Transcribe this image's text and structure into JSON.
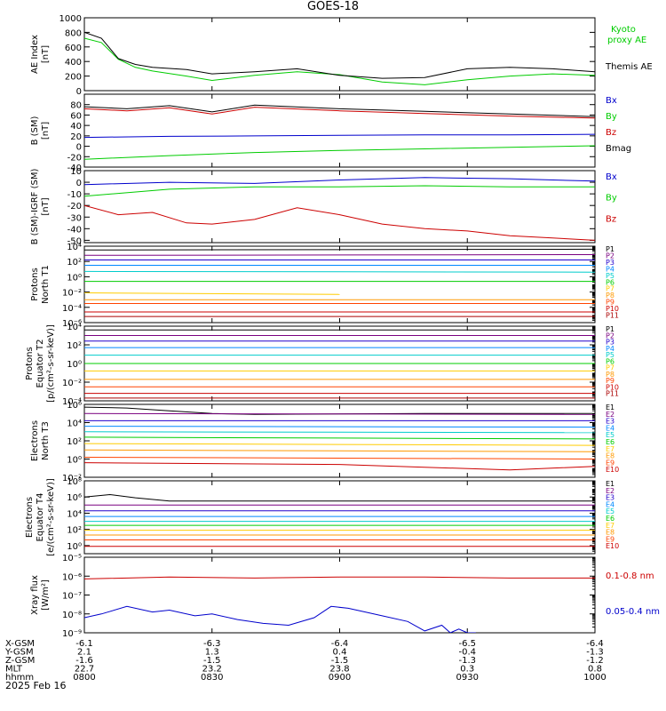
{
  "title": "GOES-18",
  "date_label": "2025 Feb 16",
  "chart_data": [
    {
      "type": "line",
      "id": "ae",
      "ylabel": [
        "AE Index",
        "[nT]"
      ],
      "ylim": [
        0,
        1000
      ],
      "ylog": false,
      "ticks": [
        0,
        200,
        400,
        600,
        800,
        1000
      ],
      "tick_labels": [
        "0",
        "200",
        "400",
        "600",
        "800",
        "1000"
      ],
      "series": [
        {
          "name": "Kyoto proxy AE",
          "label_lines": [
            "Kyoto",
            "proxy AE"
          ],
          "color": "#00cc00",
          "x": [
            0,
            4,
            8,
            12,
            16,
            24,
            30,
            40,
            50,
            60,
            70,
            80,
            90,
            100,
            110,
            120
          ],
          "y": [
            720,
            660,
            430,
            320,
            270,
            200,
            140,
            210,
            260,
            220,
            120,
            80,
            150,
            200,
            230,
            210
          ]
        },
        {
          "name": "Themis AE",
          "label_lines": [
            "Themis AE"
          ],
          "color": "#000000",
          "x": [
            0,
            4,
            8,
            12,
            16,
            24,
            30,
            40,
            50,
            60,
            70,
            80,
            90,
            100,
            110,
            120
          ],
          "y": [
            800,
            720,
            440,
            360,
            320,
            290,
            230,
            260,
            300,
            210,
            170,
            180,
            300,
            320,
            300,
            260
          ]
        }
      ]
    },
    {
      "type": "line",
      "id": "bsm",
      "ylabel": [
        "B (SM)",
        "[nT]"
      ],
      "ylim": [
        -40,
        100
      ],
      "ylog": false,
      "ticks": [
        -40,
        -20,
        0,
        20,
        40,
        60,
        80
      ],
      "tick_labels": [
        "-40",
        "-20",
        "0",
        "20",
        "40",
        "60",
        "80"
      ],
      "series": [
        {
          "name": "Bx",
          "color": "#0000cc",
          "x": [
            0,
            20,
            40,
            60,
            80,
            100,
            120
          ],
          "y": [
            17,
            19,
            20,
            21,
            22,
            22,
            23
          ]
        },
        {
          "name": "By",
          "color": "#00cc00",
          "x": [
            0,
            20,
            40,
            60,
            80,
            100,
            120
          ],
          "y": [
            -25,
            -18,
            -12,
            -8,
            -5,
            -2,
            1
          ]
        },
        {
          "name": "Bz",
          "color": "#cc0000",
          "x": [
            0,
            10,
            20,
            30,
            40,
            60,
            80,
            100,
            120
          ],
          "y": [
            72,
            68,
            74,
            62,
            75,
            68,
            63,
            58,
            54
          ]
        },
        {
          "name": "Bmag",
          "color": "#000000",
          "x": [
            0,
            10,
            20,
            30,
            40,
            60,
            80,
            100,
            120
          ],
          "y": [
            76,
            72,
            78,
            66,
            79,
            72,
            67,
            62,
            57
          ]
        }
      ]
    },
    {
      "type": "line",
      "id": "bigrf",
      "ylabel": [
        "B (SM)-IGRF (SM)",
        "[nT]"
      ],
      "ylim": [
        -52,
        10
      ],
      "ylog": false,
      "ticks": [
        -50,
        -40,
        -30,
        -20,
        -10,
        0,
        10
      ],
      "tick_labels": [
        "-50",
        "-40",
        "-30",
        "-20",
        "-10",
        "0",
        "10"
      ],
      "series": [
        {
          "name": "Bx",
          "color": "#0000cc",
          "x": [
            0,
            20,
            40,
            60,
            80,
            100,
            120
          ],
          "y": [
            -2,
            0,
            -1,
            2,
            4,
            3,
            1
          ]
        },
        {
          "name": "By",
          "color": "#00cc00",
          "x": [
            0,
            20,
            40,
            60,
            80,
            100,
            120
          ],
          "y": [
            -12,
            -6,
            -4,
            -4,
            -3,
            -4,
            -4
          ]
        },
        {
          "name": "Bz",
          "color": "#cc0000",
          "x": [
            0,
            8,
            16,
            24,
            30,
            40,
            50,
            60,
            70,
            80,
            90,
            100,
            110,
            120
          ],
          "y": [
            -20,
            -28,
            -26,
            -35,
            -36,
            -32,
            -22,
            -28,
            -36,
            -40,
            -42,
            -46,
            -48,
            -50
          ]
        }
      ]
    },
    {
      "type": "line",
      "id": "p_north",
      "ylabel": [
        "Protons",
        "North T1"
      ],
      "ylim": [
        -6,
        4
      ],
      "ylog": true,
      "ticks": [
        4,
        2,
        0,
        -2,
        -4,
        -6
      ],
      "tick_labels": [
        "10⁴",
        "10²",
        "10⁰",
        "10⁻²",
        "10⁻⁴",
        "10⁻⁶"
      ],
      "series": [
        {
          "name": "P1",
          "color": "#000000",
          "x": [
            0,
            120
          ],
          "y": [
            3.5,
            3.6
          ]
        },
        {
          "name": "P2",
          "color": "#7a0080",
          "x": [
            0,
            120
          ],
          "y": [
            2.8,
            2.9
          ]
        },
        {
          "name": "P3",
          "color": "#2200cc",
          "x": [
            0,
            120
          ],
          "y": [
            2.2,
            2.2
          ]
        },
        {
          "name": "P4",
          "color": "#0088ff",
          "x": [
            0,
            120
          ],
          "y": [
            1.5,
            1.5
          ]
        },
        {
          "name": "P5",
          "color": "#00cccc",
          "x": [
            0,
            120
          ],
          "y": [
            0.7,
            0.6
          ]
        },
        {
          "name": "P6",
          "color": "#00cc00",
          "x": [
            0,
            120
          ],
          "y": [
            -0.6,
            -0.6
          ]
        },
        {
          "name": "P7",
          "color": "#ffcc00",
          "x": [
            0,
            60
          ],
          "y": [
            -2.1,
            -2.3
          ]
        },
        {
          "name": "P8",
          "color": "#ff9900",
          "x": [
            0,
            120
          ],
          "y": [
            -3.0,
            -3.0
          ]
        },
        {
          "name": "P9",
          "color": "#ff4400",
          "x": [
            0,
            120
          ],
          "y": [
            -3.5,
            -3.5
          ]
        },
        {
          "name": "P10",
          "color": "#cc0000",
          "x": [
            0,
            120
          ],
          "y": [
            -4.6,
            -4.6
          ]
        },
        {
          "name": "P11",
          "color": "#aa0000",
          "x": [
            0,
            120
          ],
          "y": [
            -5.2,
            -5.2
          ]
        }
      ]
    },
    {
      "type": "line",
      "id": "p_equator",
      "ylabel": [
        "Protons",
        "Equator T2",
        "[p/(cm²-s-sr-keV)]"
      ],
      "ylim": [
        -4,
        4
      ],
      "ylog": true,
      "ticks": [
        4,
        2,
        0,
        -2,
        -4
      ],
      "tick_labels": [
        "10⁴",
        "10²",
        "10⁰",
        "10⁻²",
        "10⁻⁴"
      ],
      "series": [
        {
          "name": "P1",
          "color": "#000000",
          "x": [
            0,
            120
          ],
          "y": [
            3.6,
            3.6
          ]
        },
        {
          "name": "P2",
          "color": "#7a0080",
          "x": [
            0,
            120
          ],
          "y": [
            3.0,
            3.0
          ]
        },
        {
          "name": "P3",
          "color": "#2200cc",
          "x": [
            0,
            120
          ],
          "y": [
            2.4,
            2.4
          ]
        },
        {
          "name": "P4",
          "color": "#0088ff",
          "x": [
            0,
            120
          ],
          "y": [
            1.7,
            1.7
          ]
        },
        {
          "name": "P5",
          "color": "#00cccc",
          "x": [
            0,
            120
          ],
          "y": [
            0.9,
            0.9
          ]
        },
        {
          "name": "P6",
          "color": "#00cc00",
          "x": [
            0,
            120
          ],
          "y": [
            0.0,
            0.0
          ]
        },
        {
          "name": "P7",
          "color": "#ffcc00",
          "x": [
            0,
            120
          ],
          "y": [
            -0.8,
            -0.8
          ]
        },
        {
          "name": "P8",
          "color": "#ff9900",
          "x": [
            0,
            120
          ],
          "y": [
            -1.7,
            -1.7
          ]
        },
        {
          "name": "P9",
          "color": "#ff4400",
          "x": [
            0,
            120
          ],
          "y": [
            -2.5,
            -2.5
          ]
        },
        {
          "name": "P10",
          "color": "#cc0000",
          "x": [
            0,
            120
          ],
          "y": [
            -3.2,
            -3.2
          ]
        },
        {
          "name": "P11",
          "color": "#aa0000",
          "x": [
            0,
            120
          ],
          "y": [
            -3.7,
            -3.7
          ]
        }
      ]
    },
    {
      "type": "line",
      "id": "e_north",
      "ylabel": [
        "Electrons",
        "North T3"
      ],
      "ylim": [
        -2,
        6
      ],
      "ylog": true,
      "ticks": [
        6,
        4,
        2,
        0,
        -2
      ],
      "tick_labels": [
        "10⁶",
        "10⁴",
        "10²",
        "10⁰",
        "10⁻²"
      ],
      "series": [
        {
          "name": "E1",
          "color": "#000000",
          "x": [
            0,
            10,
            20,
            30,
            40,
            80,
            120
          ],
          "y": [
            5.7,
            5.6,
            5.3,
            5.0,
            4.9,
            5.0,
            5.0
          ]
        },
        {
          "name": "E2",
          "color": "#7a0080",
          "x": [
            0,
            120
          ],
          "y": [
            5.0,
            4.9
          ]
        },
        {
          "name": "E3",
          "color": "#2200cc",
          "x": [
            0,
            120
          ],
          "y": [
            4.2,
            4.2
          ]
        },
        {
          "name": "E4",
          "color": "#0088ff",
          "x": [
            0,
            120
          ],
          "y": [
            3.6,
            3.5
          ]
        },
        {
          "name": "E5",
          "color": "#00cccc",
          "x": [
            0,
            120
          ],
          "y": [
            3.0,
            2.9
          ]
        },
        {
          "name": "E6",
          "color": "#00cc00",
          "x": [
            0,
            120
          ],
          "y": [
            2.4,
            2.2
          ]
        },
        {
          "name": "E7",
          "color": "#ffcc00",
          "x": [
            0,
            120
          ],
          "y": [
            1.7,
            1.5
          ]
        },
        {
          "name": "E8",
          "color": "#ff9900",
          "x": [
            0,
            120
          ],
          "y": [
            1.0,
            0.8
          ]
        },
        {
          "name": "E9",
          "color": "#ff4400",
          "x": [
            0,
            120
          ],
          "y": [
            0.2,
            0.0
          ]
        },
        {
          "name": "E10",
          "color": "#cc0000",
          "x": [
            0,
            60,
            100,
            120
          ],
          "y": [
            -0.4,
            -0.6,
            -1.2,
            -0.8
          ]
        }
      ]
    },
    {
      "type": "line",
      "id": "e_equator",
      "ylabel": [
        "Electrons",
        "Equator T4",
        "[e/(cm²-s-sr-keV)]"
      ],
      "ylim": [
        -1,
        8
      ],
      "ylog": true,
      "ticks": [
        8,
        6,
        4,
        2,
        0
      ],
      "tick_labels": [
        "10⁸",
        "10⁶",
        "10⁴",
        "10²",
        "10⁰"
      ],
      "series": [
        {
          "name": "E1",
          "color": "#000000",
          "x": [
            0,
            6,
            12,
            20,
            120
          ],
          "y": [
            6.0,
            6.3,
            5.9,
            5.5,
            5.5
          ]
        },
        {
          "name": "E2",
          "color": "#7a0080",
          "x": [
            0,
            120
          ],
          "y": [
            5.0,
            5.0
          ]
        },
        {
          "name": "E3",
          "color": "#2200cc",
          "x": [
            0,
            120
          ],
          "y": [
            4.3,
            4.3
          ]
        },
        {
          "name": "E4",
          "color": "#0088ff",
          "x": [
            0,
            120
          ],
          "y": [
            3.6,
            3.6
          ]
        },
        {
          "name": "E5",
          "color": "#00cccc",
          "x": [
            0,
            120
          ],
          "y": [
            3.0,
            3.0
          ]
        },
        {
          "name": "E6",
          "color": "#00cc00",
          "x": [
            0,
            120
          ],
          "y": [
            2.5,
            2.5
          ]
        },
        {
          "name": "E7",
          "color": "#ffcc00",
          "x": [
            0,
            120
          ],
          "y": [
            1.9,
            1.9
          ]
        },
        {
          "name": "E8",
          "color": "#ff9900",
          "x": [
            0,
            120
          ],
          "y": [
            1.3,
            1.3
          ]
        },
        {
          "name": "E9",
          "color": "#ff4400",
          "x": [
            0,
            120
          ],
          "y": [
            0.7,
            0.7
          ]
        },
        {
          "name": "E10",
          "color": "#cc0000",
          "x": [
            0,
            120
          ],
          "y": [
            -0.1,
            -0.1
          ]
        }
      ]
    },
    {
      "type": "line",
      "id": "xray",
      "ylabel": [
        "Xray flux",
        "[W/m²]"
      ],
      "ylim": [
        -9,
        -5
      ],
      "ylog": true,
      "ticks": [
        -5,
        -6,
        -7,
        -8,
        -9
      ],
      "tick_labels": [
        "10⁻⁵",
        "10⁻⁶",
        "10⁻⁷",
        "10⁻⁸",
        "10⁻⁹"
      ],
      "series": [
        {
          "name": "0.1-0.8 nm",
          "color": "#cc0000",
          "x": [
            0,
            20,
            40,
            60,
            80,
            100,
            120
          ],
          "y": [
            -6.15,
            -6.05,
            -6.1,
            -6.05,
            -6.05,
            -6.1,
            -6.1
          ]
        },
        {
          "name": "0.05-0.4 nm",
          "color": "#0000cc",
          "x": [
            0,
            4,
            10,
            16,
            20,
            26,
            30,
            36,
            42,
            48,
            54,
            58,
            62,
            66,
            70,
            76,
            80,
            84,
            86,
            88,
            90,
            92
          ],
          "y": [
            -8.2,
            -8.0,
            -7.6,
            -7.9,
            -7.8,
            -8.1,
            -8.0,
            -8.3,
            -8.5,
            -8.6,
            -8.2,
            -7.6,
            -7.7,
            -7.9,
            -8.1,
            -8.4,
            -8.9,
            -8.6,
            -9.0,
            -8.8,
            -9.0,
            -9.0
          ]
        }
      ]
    }
  ],
  "x_axis": {
    "xlim": [
      0,
      120
    ],
    "ticks": [
      0,
      30,
      60,
      90,
      120
    ],
    "row_labels": [
      "X-GSM",
      "Y-GSM",
      "Z-GSM",
      "MLT",
      "hhmm"
    ],
    "columns": [
      {
        "x": 0,
        "values": [
          "-6.1",
          "2.1",
          "-1.6",
          "22.7",
          "0800"
        ]
      },
      {
        "x": 30,
        "values": [
          "-6.3",
          "1.3",
          "-1.5",
          "23.2",
          "0830"
        ]
      },
      {
        "x": 60,
        "values": [
          "-6.4",
          "0.4",
          "-1.5",
          "23.8",
          "0900"
        ]
      },
      {
        "x": 90,
        "values": [
          "-6.5",
          "-0.4",
          "-1.3",
          "0.3",
          "0930"
        ]
      },
      {
        "x": 120,
        "values": [
          "-6.4",
          "-1.3",
          "-1.2",
          "0.8",
          "1000"
        ]
      }
    ]
  }
}
